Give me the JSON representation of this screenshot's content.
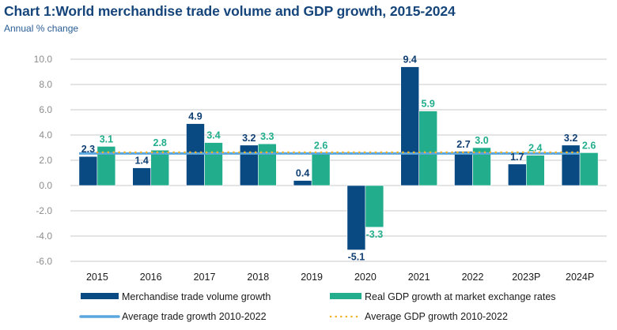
{
  "header": {
    "title": "Chart 1:World merchandise trade volume and GDP growth, 2015-2024",
    "subtitle": "Annual % change"
  },
  "colors": {
    "trade": "#0a4a82",
    "gdp": "#22ae8c",
    "avg_trade": "#5aa6de",
    "avg_gdp": "#f2b226",
    "grid": "#d3d3d3"
  },
  "chart_data": {
    "type": "bar",
    "title": "Chart 1:World merchandise trade volume and GDP growth, 2015-2024",
    "subtitle": "Annual % change",
    "xlabel": "",
    "ylabel": "Annual % change",
    "ylim": [
      -6,
      10
    ],
    "yticks": [
      10,
      8,
      6,
      4,
      2,
      0,
      -2,
      -4,
      -6
    ],
    "ytick_labels": [
      "10.0",
      "8.0",
      "6.0",
      "4.0",
      "2.0",
      "0.0",
      "-2.0",
      "-4.0",
      "-6.0"
    ],
    "grid": true,
    "categories": [
      "2015",
      "2016",
      "2017",
      "2018",
      "2019",
      "2020",
      "2021",
      "2022",
      "2023P",
      "2024P"
    ],
    "series": [
      {
        "name": "Merchandise trade volume growth",
        "type": "bar",
        "values": [
          2.3,
          1.4,
          4.9,
          3.2,
          0.4,
          -5.1,
          9.4,
          2.7,
          1.7,
          3.2
        ],
        "labels": [
          "2.3",
          "1.4",
          "4.9",
          "3.2",
          "0.4",
          "-5.1",
          "9.4",
          "2.7",
          "1.7",
          "3.2"
        ]
      },
      {
        "name": "Real GDP growth at market exchange rates",
        "type": "bar",
        "values": [
          3.1,
          2.8,
          3.4,
          3.3,
          2.6,
          -3.3,
          5.9,
          3.0,
          2.4,
          2.6
        ],
        "labels": [
          "3.1",
          "2.8",
          "3.4",
          "3.3",
          "2.6",
          "-3.3",
          "5.9",
          "3.0",
          "2.4",
          "2.6"
        ]
      },
      {
        "name": "Average trade growth 2010-2022",
        "type": "line",
        "value": 2.6
      },
      {
        "name": "Average GDP growth 2010-2022",
        "type": "line-dotted",
        "value": 2.7
      }
    ],
    "legend": {
      "placement": "bottom",
      "entries": [
        "Merchandise trade volume growth",
        "Real GDP growth at market exchange rates",
        "Average trade growth 2010-2022",
        "Average GDP growth 2010-2022"
      ]
    }
  }
}
